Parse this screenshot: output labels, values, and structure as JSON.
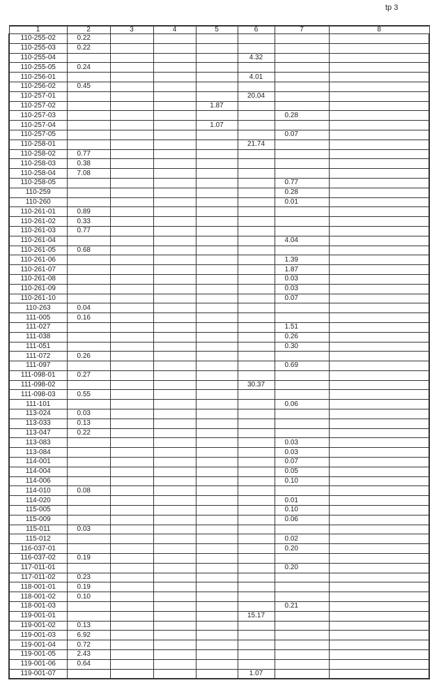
{
  "page_label": "tp 3",
  "columns": [
    "1",
    "2",
    "3",
    "4",
    "5",
    "6",
    "7",
    "8"
  ],
  "rows": [
    [
      "110-255-02",
      "0.22",
      "",
      "",
      "",
      "",
      "",
      ""
    ],
    [
      "110-255-03",
      "0.22",
      "",
      "",
      "",
      "",
      "",
      ""
    ],
    [
      "110-255-04",
      "",
      "",
      "",
      "",
      "4.32",
      "",
      ""
    ],
    [
      "110-255-05",
      "0.24",
      "",
      "",
      "",
      "",
      "",
      ""
    ],
    [
      "110-256-01",
      "",
      "",
      "",
      "",
      "4.01",
      "",
      ""
    ],
    [
      "110-256-02",
      "0.45",
      "",
      "",
      "",
      "",
      "",
      ""
    ],
    [
      "110-257-01",
      "",
      "",
      "",
      "",
      "20.04",
      "",
      ""
    ],
    [
      "110-257-02",
      "",
      "",
      "",
      "1.87",
      "",
      "",
      ""
    ],
    [
      "110-257-03",
      "",
      "",
      "",
      "",
      "",
      "0.28",
      ""
    ],
    [
      "110-257-04",
      "",
      "",
      "",
      "1.07",
      "",
      "",
      ""
    ],
    [
      "110-257-05",
      "",
      "",
      "",
      "",
      "",
      "0.07",
      ""
    ],
    [
      "110-258-01",
      "",
      "",
      "",
      "",
      "21.74",
      "",
      ""
    ],
    [
      "110-258-02",
      "0.77",
      "",
      "",
      "",
      "",
      "",
      ""
    ],
    [
      "110-258-03",
      "0.38",
      "",
      "",
      "",
      "",
      "",
      ""
    ],
    [
      "110-258-04",
      "7.08",
      "",
      "",
      "",
      "",
      "",
      ""
    ],
    [
      "110-258-05",
      "",
      "",
      "",
      "",
      "",
      "0.77",
      ""
    ],
    [
      "110-259",
      "",
      "",
      "",
      "",
      "",
      "0.28",
      ""
    ],
    [
      "110-260",
      "",
      "",
      "",
      "",
      "",
      "0.01",
      ""
    ],
    [
      "110-261-01",
      "0.89",
      "",
      "",
      "",
      "",
      "",
      ""
    ],
    [
      "110-261-02",
      "0.33",
      "",
      "",
      "",
      "",
      "",
      ""
    ],
    [
      "110-261-03",
      "0.77",
      "",
      "",
      "",
      "",
      "",
      ""
    ],
    [
      "110-261-04",
      "",
      "",
      "",
      "",
      "",
      "4.04",
      ""
    ],
    [
      "110-261-05",
      "0.68",
      "",
      "",
      "",
      "",
      "",
      ""
    ],
    [
      "110-261-06",
      "",
      "",
      "",
      "",
      "",
      "1.39",
      ""
    ],
    [
      "110-261-07",
      "",
      "",
      "",
      "",
      "",
      "1.87",
      ""
    ],
    [
      "110-261-08",
      "",
      "",
      "",
      "",
      "",
      "0.03",
      ""
    ],
    [
      "110-261-09",
      "",
      "",
      "",
      "",
      "",
      "0.03",
      ""
    ],
    [
      "110-261-10",
      "",
      "",
      "",
      "",
      "",
      "0.07",
      ""
    ],
    [
      "110-263",
      "0.04",
      "",
      "",
      "",
      "",
      "",
      ""
    ],
    [
      "111-005",
      "0.16",
      "",
      "",
      "",
      "",
      "",
      ""
    ],
    [
      "111-027",
      "",
      "",
      "",
      "",
      "",
      "1.51",
      ""
    ],
    [
      "111-038",
      "",
      "",
      "",
      "",
      "",
      "0.26",
      ""
    ],
    [
      "111-051",
      "",
      "",
      "",
      "",
      "",
      "0.30",
      ""
    ],
    [
      "111-072",
      "0.26",
      "",
      "",
      "",
      "",
      "",
      ""
    ],
    [
      "111-097",
      "",
      "",
      "",
      "",
      "",
      "0.69",
      ""
    ],
    [
      "111-098-01",
      "0.27",
      "",
      "",
      "",
      "",
      "",
      ""
    ],
    [
      "111-098-02",
      "",
      "",
      "",
      "",
      "30.37",
      "",
      ""
    ],
    [
      "111-098-03",
      "0.55",
      "",
      "",
      "",
      "",
      "",
      ""
    ],
    [
      "111-101",
      "",
      "",
      "",
      "",
      "",
      "0.06",
      ""
    ],
    [
      "113-024",
      "0.03",
      "",
      "",
      "",
      "",
      "",
      ""
    ],
    [
      "113-033",
      "0.13",
      "",
      "",
      "",
      "",
      "",
      ""
    ],
    [
      "113-047",
      "0.22",
      "",
      "",
      "",
      "",
      "",
      ""
    ],
    [
      "113-083",
      "",
      "",
      "",
      "",
      "",
      "0.03",
      ""
    ],
    [
      "113-084",
      "",
      "",
      "",
      "",
      "",
      "0.03",
      ""
    ],
    [
      "114-001",
      "",
      "",
      "",
      "",
      "",
      "0.07",
      ""
    ],
    [
      "114-004",
      "",
      "",
      "",
      "",
      "",
      "0.05",
      ""
    ],
    [
      "114-006",
      "",
      "",
      "",
      "",
      "",
      "0.10",
      ""
    ],
    [
      "114-010",
      "0.08",
      "",
      "",
      "",
      "",
      "",
      ""
    ],
    [
      "114-020",
      "",
      "",
      "",
      "",
      "",
      "0.01",
      ""
    ],
    [
      "115-005",
      "",
      "",
      "",
      "",
      "",
      "0.10",
      ""
    ],
    [
      "115-009",
      "",
      "",
      "",
      "",
      "",
      "0.06",
      ""
    ],
    [
      "115-011",
      "0.03",
      "",
      "",
      "",
      "",
      "",
      ""
    ],
    [
      "115-012",
      "",
      "",
      "",
      "",
      "",
      "0.02",
      ""
    ],
    [
      "116-037-01",
      "",
      "",
      "",
      "",
      "",
      "0.20",
      ""
    ],
    [
      "116-037-02",
      "0.19",
      "",
      "",
      "",
      "",
      "",
      ""
    ],
    [
      "117-011-01",
      "",
      "",
      "",
      "",
      "",
      "0.20",
      ""
    ],
    [
      "117-011-02",
      "0.23",
      "",
      "",
      "",
      "",
      "",
      ""
    ],
    [
      "118-001-01",
      "0.19",
      "",
      "",
      "",
      "",
      "",
      ""
    ],
    [
      "118-001-02",
      "0.10",
      "",
      "",
      "",
      "",
      "",
      ""
    ],
    [
      "118-001-03",
      "",
      "",
      "",
      "",
      "",
      "0.21",
      ""
    ],
    [
      "119-001-01",
      "",
      "",
      "",
      "",
      "15.17",
      "",
      ""
    ],
    [
      "119-001-02",
      "0.13",
      "",
      "",
      "",
      "",
      "",
      ""
    ],
    [
      "119-001-03",
      "6.92",
      "",
      "",
      "",
      "",
      "",
      ""
    ],
    [
      "119-001-04",
      "0.72",
      "",
      "",
      "",
      "",
      "",
      ""
    ],
    [
      "119-001-05",
      "2.43",
      "",
      "",
      "",
      "",
      "",
      ""
    ],
    [
      "119-001-06",
      "0.64",
      "",
      "",
      "",
      "",
      "",
      ""
    ],
    [
      "119-001-07",
      "",
      "",
      "",
      "",
      "1.07",
      "",
      ""
    ]
  ]
}
